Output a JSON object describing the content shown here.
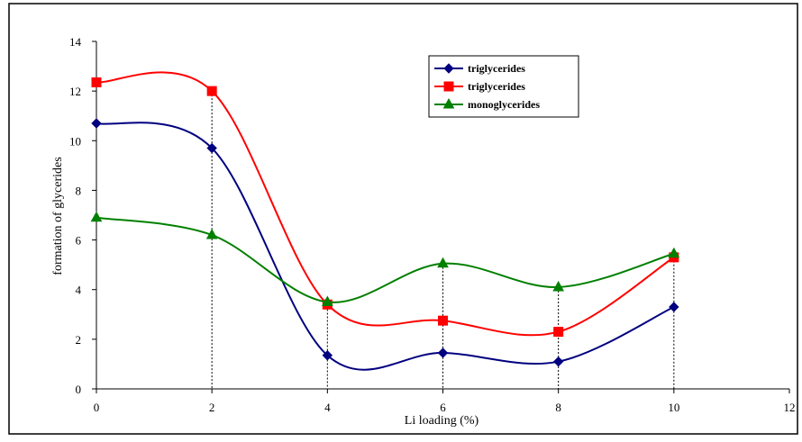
{
  "chart_data": {
    "type": "line",
    "title": "",
    "xlabel": "Li loading (%)",
    "ylabel": "formation of glycerides",
    "xlim": [
      0,
      12
    ],
    "ylim": [
      0,
      14
    ],
    "x_ticks": [
      0,
      2,
      4,
      6,
      8,
      10,
      12
    ],
    "y_ticks": [
      0,
      2,
      4,
      6,
      8,
      10,
      12,
      14
    ],
    "x_tick_labels": [
      "0",
      "2",
      "4",
      "6",
      "8",
      "10",
      "12"
    ],
    "y_tick_labels": [
      "0",
      "2",
      "4",
      "6",
      "8",
      "10",
      "12",
      "14"
    ],
    "grid": false,
    "drop_lines": true,
    "smoothed": true,
    "legend_position": "top-right",
    "series": [
      {
        "name": "triglycerides",
        "color": "#000080",
        "marker": "diamond",
        "x": [
          0,
          2,
          4,
          6,
          8,
          10
        ],
        "y": [
          10.7,
          9.7,
          1.35,
          1.45,
          1.1,
          3.3
        ]
      },
      {
        "name": "triglycerides",
        "color": "#ff0000",
        "marker": "square",
        "x": [
          0,
          2,
          4,
          6,
          8,
          10
        ],
        "y": [
          12.35,
          12.0,
          3.4,
          2.75,
          2.3,
          5.3
        ]
      },
      {
        "name": "monoglycerides",
        "color": "#008000",
        "marker": "triangle",
        "x": [
          0,
          2,
          4,
          6,
          8,
          10
        ],
        "y": [
          6.9,
          6.2,
          3.5,
          5.05,
          4.1,
          5.45
        ]
      }
    ]
  }
}
